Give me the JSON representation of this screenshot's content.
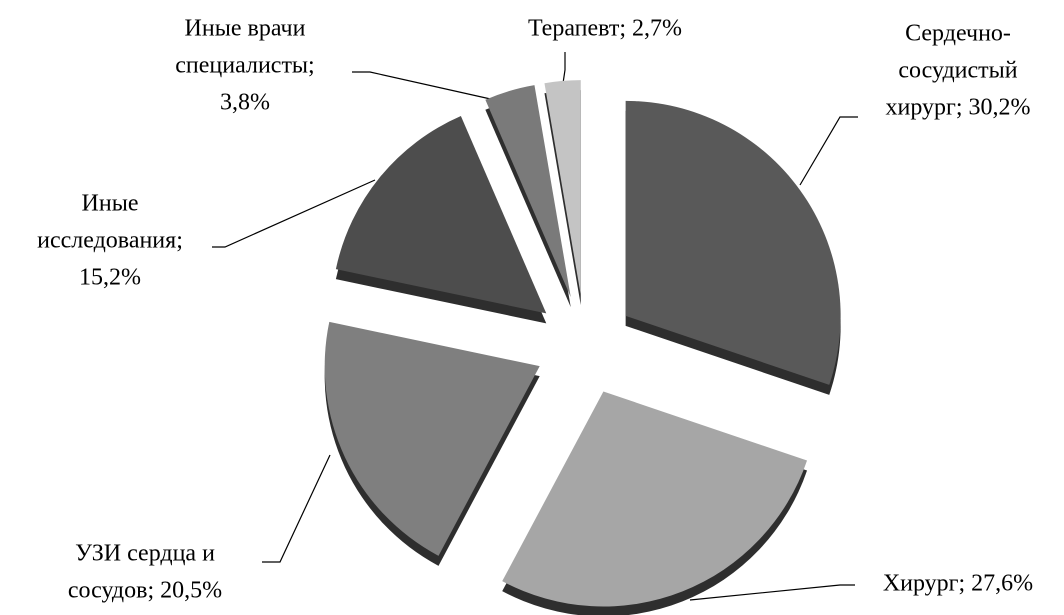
{
  "chart_data": {
    "type": "pie",
    "values": [
      30.2,
      27.6,
      20.5,
      15.2,
      3.8,
      2.7
    ],
    "value_labels": [
      [
        "Сердечно-",
        "сосудистый",
        "хирург; 30,2%"
      ],
      [
        "Хирург; 27,6%"
      ],
      [
        "УЗИ сердца и",
        "сосудов; 20,5%"
      ],
      [
        "Иные",
        "исследования;",
        "15,2%"
      ],
      [
        "Иные врачи",
        "специалисты;",
        "3,8%"
      ],
      [
        "Терапевт; 2,7%"
      ]
    ],
    "colors": [
      "#595959",
      "#a6a6a6",
      "#7f7f7f",
      "#4d4d4d",
      "#7a7a7a",
      "#c4c4c4"
    ]
  }
}
